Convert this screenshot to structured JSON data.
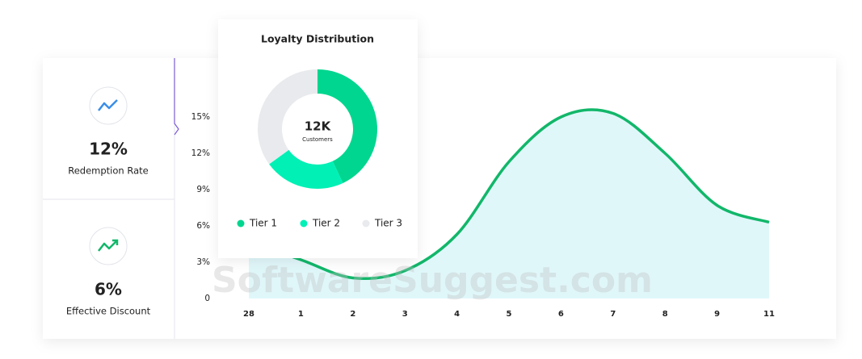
{
  "cards": [
    {
      "value": "12%",
      "label": "Redemption Rate"
    },
    {
      "value": "6%",
      "label": "Effective Discount"
    }
  ],
  "chart_data": [
    {
      "type": "donut",
      "title": "Loyalty Distribution",
      "center_value": "12K",
      "center_label": "Customers",
      "categories": [
        "Tier 1",
        "Tier 2",
        "Tier 3"
      ],
      "values": [
        43,
        22,
        35
      ],
      "colors": [
        "#00d68f",
        "#00f0b5",
        "#e8eaed"
      ]
    },
    {
      "type": "area",
      "categories": [
        "28",
        "1",
        "2",
        "3",
        "4",
        "5",
        "6",
        "7",
        "8",
        "9",
        "11"
      ],
      "values": [
        4.7,
        3.2,
        1.7,
        2.3,
        5.3,
        11.3,
        15.0,
        15.3,
        12.0,
        7.7,
        6.3
      ],
      "color": "#12b76a",
      "fill": "#e0f7fa",
      "ylim": [
        0,
        16
      ],
      "yticks": [
        0,
        {
          "value": 3,
          "label": "3%"
        },
        {
          "value": 6,
          "label": "6%"
        },
        {
          "value": 9,
          "label": "9%"
        },
        {
          "value": 12,
          "label": "12%"
        },
        {
          "value": 15,
          "label": "15%"
        }
      ]
    }
  ],
  "watermark": "SoftwareSuggest.com"
}
